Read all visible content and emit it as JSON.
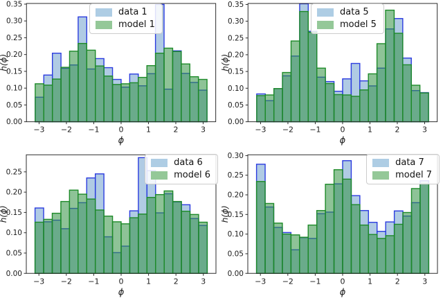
{
  "figure": {
    "background": "#ffffff"
  },
  "axis": {
    "xlabel": "ϕ",
    "ylabel": "h(ϕ)",
    "x_tick_labels": [
      "−3",
      "−2",
      "−1",
      "0",
      "1",
      "2",
      "3"
    ],
    "x_tick_values": [
      -3,
      -2,
      -1,
      0,
      1,
      2,
      3
    ],
    "xlim": [
      -3.46,
      3.46
    ],
    "bin_start": -3.1416,
    "bin_end": 3.1416,
    "n_bins": 20
  },
  "colors": {
    "data_fill": "rgba(80,140,195,0.45)",
    "data_edge": "#2b3bdf",
    "model_fill": "rgba(50,145,65,0.55)",
    "model_edge": "#1d8a28",
    "legend_data_swatch": "#aecde4",
    "legend_model_swatch": "#94c898",
    "spine": "#2b2b2b",
    "tick_text": "#1a1a1a"
  },
  "chart_data": [
    {
      "type": "histogram",
      "panel": "top-left",
      "legend_position": "upper-center",
      "xlabel": "ϕ",
      "ylabel": "h(ϕ)",
      "ylim": [
        0,
        0.352
      ],
      "y_tick_values": [
        0.0,
        0.05,
        0.1,
        0.15,
        0.2,
        0.25,
        0.3,
        0.35
      ],
      "y_tick_labels": [
        "0.00",
        "0.05",
        "0.10",
        "0.15",
        "0.20",
        "0.25",
        "0.30",
        "0.35"
      ],
      "series": [
        {
          "name": "data 1",
          "values": [
            0.073,
            0.139,
            0.204,
            0.159,
            0.169,
            0.312,
            0.157,
            0.188,
            0.161,
            0.126,
            0.103,
            0.142,
            0.107,
            0.143,
            0.349,
            0.097,
            0.211,
            0.144,
            0.117,
            0.094
          ]
        },
        {
          "name": "model 1",
          "values": [
            0.113,
            0.109,
            0.127,
            0.162,
            0.21,
            0.233,
            0.213,
            0.166,
            0.136,
            0.111,
            0.113,
            0.116,
            0.132,
            0.167,
            0.204,
            0.219,
            0.209,
            0.172,
            0.134,
            0.126
          ]
        }
      ]
    },
    {
      "type": "histogram",
      "panel": "top-right",
      "legend_position": "upper-center",
      "xlabel": "ϕ",
      "ylabel": "h(ϕ)",
      "ylim": [
        0,
        0.353
      ],
      "y_tick_values": [
        0.0,
        0.05,
        0.1,
        0.15,
        0.2,
        0.25,
        0.3,
        0.35
      ],
      "y_tick_labels": [
        "0.00",
        "0.05",
        "0.10",
        "0.15",
        "0.20",
        "0.25",
        "0.30",
        "0.35"
      ],
      "series": [
        {
          "name": "data 5",
          "values": [
            0.083,
            0.063,
            0.099,
            0.137,
            0.196,
            0.352,
            0.27,
            0.133,
            0.12,
            0.091,
            0.128,
            0.174,
            0.122,
            0.107,
            0.16,
            0.277,
            0.308,
            0.19,
            0.093,
            0.087
          ]
        },
        {
          "name": "model 5",
          "values": [
            0.078,
            0.08,
            0.099,
            0.147,
            0.241,
            0.329,
            0.267,
            0.16,
            0.114,
            0.081,
            0.08,
            0.076,
            0.095,
            0.143,
            0.233,
            0.333,
            0.264,
            0.17,
            0.109,
            0.086
          ]
        }
      ]
    },
    {
      "type": "histogram",
      "panel": "bottom-left",
      "legend_position": "upper-right",
      "xlabel": "ϕ",
      "ylabel": "h(ϕ)",
      "ylim": [
        0,
        0.292
      ],
      "y_tick_values": [
        0.0,
        0.05,
        0.1,
        0.15,
        0.2,
        0.25
      ],
      "y_tick_labels": [
        "0.00",
        "0.05",
        "0.10",
        "0.15",
        "0.20",
        "0.25"
      ],
      "series": [
        {
          "name": "data 6",
          "values": [
            0.161,
            0.127,
            0.131,
            0.11,
            0.16,
            0.174,
            0.235,
            0.245,
            0.09,
            0.051,
            0.067,
            0.154,
            0.285,
            0.253,
            0.149,
            0.196,
            0.176,
            0.169,
            0.135,
            0.118
          ]
        },
        {
          "name": "model 6",
          "values": [
            0.126,
            0.133,
            0.148,
            0.177,
            0.205,
            0.195,
            0.183,
            0.156,
            0.141,
            0.127,
            0.122,
            0.137,
            0.146,
            0.187,
            0.194,
            0.203,
            0.177,
            0.153,
            0.145,
            0.126
          ]
        }
      ]
    },
    {
      "type": "histogram",
      "panel": "bottom-right",
      "legend_position": "upper-right",
      "xlabel": "ϕ",
      "ylabel": "h(ϕ)",
      "ylim": [
        0,
        0.302
      ],
      "y_tick_values": [
        0.0,
        0.05,
        0.1,
        0.15,
        0.2,
        0.25,
        0.3
      ],
      "y_tick_labels": [
        "0.00",
        "0.05",
        "0.10",
        "0.15",
        "0.20",
        "0.25",
        "0.30"
      ],
      "series": [
        {
          "name": "data 7",
          "values": [
            0.278,
            0.169,
            0.117,
            0.104,
            0.06,
            0.091,
            0.089,
            0.152,
            0.156,
            0.228,
            0.287,
            0.198,
            0.16,
            0.13,
            0.107,
            0.131,
            0.159,
            0.146,
            0.18,
            0.236
          ]
        },
        {
          "name": "model 7",
          "values": [
            0.234,
            0.178,
            0.128,
            0.1,
            0.098,
            0.092,
            0.123,
            0.16,
            0.227,
            0.264,
            0.24,
            0.175,
            0.123,
            0.099,
            0.089,
            0.096,
            0.125,
            0.155,
            0.216,
            0.228
          ]
        }
      ]
    }
  ]
}
